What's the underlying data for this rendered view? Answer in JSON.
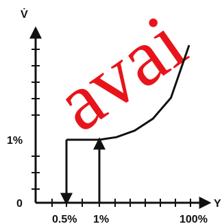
{
  "watermark": {
    "text": "avai",
    "color": "#e8141b"
  },
  "chart_data": {
    "type": "line",
    "title": "",
    "xlabel": "Y",
    "ylabel": "V̇",
    "x_ticks": [
      "0.5%",
      "1%",
      "100%"
    ],
    "y_ticks": [
      "0",
      "1%"
    ],
    "grid": false,
    "series": [
      {
        "points": [
          [
            1,
            1
          ],
          [
            20,
            1.1
          ],
          [
            40,
            1.35
          ],
          [
            60,
            1.8
          ],
          [
            80,
            2.6
          ],
          [
            100,
            4.6
          ]
        ]
      }
    ],
    "annotations": {
      "upward_arrow_at_x": "1%",
      "step_from": "1%",
      "step_to": "0.5%",
      "downward_arrow_at_x": "0.5%"
    }
  }
}
